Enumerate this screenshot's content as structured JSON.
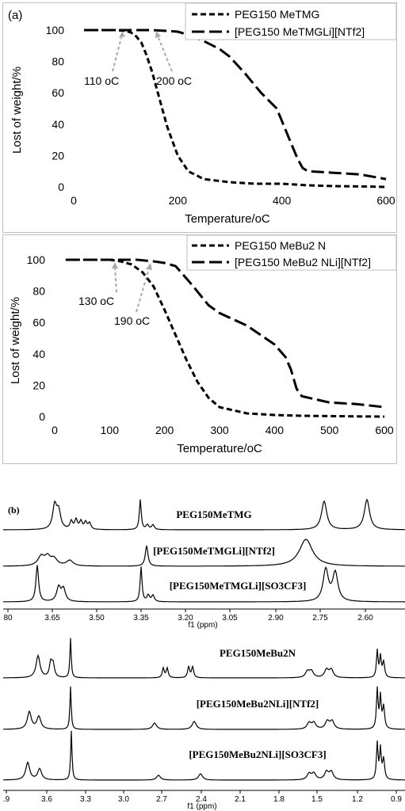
{
  "figure_a": {
    "panel_label": "(a)",
    "charts": [
      {
        "legend": [
          "PEG150 MeTMG",
          "[PEG150 MeTMGLi][NTf2]"
        ],
        "annotations": [
          "110 oC",
          "200 oC"
        ],
        "xlabel": "Temperature/oC",
        "ylabel": "Lost of weight/%"
      },
      {
        "legend": [
          "PEG150 MeBu2 N",
          "[PEG150 MeBu2 NLi][NTf2]"
        ],
        "annotations": [
          "130 oC",
          "190 oC"
        ],
        "xlabel": "Temperature/oC",
        "ylabel": "Lost of weight/%"
      }
    ]
  },
  "figure_b": {
    "panel_label": "(b)",
    "top": {
      "traces": [
        "PEG150MeTMG",
        "[PEG150MeTMGLi][NTf2]",
        "[PEG150MeTMGLi][SO3CF3]"
      ],
      "ticks": [
        "80",
        "3.65",
        "3.50",
        "3.35",
        "3.20",
        "3.05",
        "2.90",
        "2.75",
        "2.60"
      ],
      "xlabel": "f1 (ppm)"
    },
    "bottom": {
      "traces": [
        "PEG150MeBu2N",
        "[PEG150MeBu2NLi][NTf2]",
        "[PEG150MeBu2NLi][SO3CF3]"
      ],
      "ticks": [
        ".9",
        "3.6",
        "3.3",
        "3.0",
        "2.7",
        "2.4",
        "2.1",
        "1.8",
        "1.5",
        "1.2",
        "0.9"
      ],
      "xlabel": "f1 (ppm)"
    }
  },
  "chart_data": [
    {
      "type": "line",
      "xlabel": "Temperature/oC",
      "ylabel": "Lost of weight/%",
      "xlim": [
        0,
        600
      ],
      "ylim": [
        0,
        100
      ],
      "xticks": [
        0,
        200,
        400,
        600
      ],
      "yticks": [
        0,
        20,
        40,
        60,
        80,
        100
      ],
      "grid": false,
      "legend_position": "top-right",
      "series": [
        {
          "name": "PEG150 MeTMG",
          "style": "short-dash",
          "x": [
            20,
            80,
            100,
            110,
            120,
            130,
            140,
            150,
            160,
            170,
            180,
            200,
            220,
            250,
            300,
            350,
            400,
            450,
            500,
            550,
            600
          ],
          "y": [
            100,
            100,
            99.5,
            98.5,
            96,
            92,
            84,
            74,
            62,
            50,
            38,
            20,
            10,
            5,
            3,
            2,
            2,
            1,
            0.5,
            0.3,
            0
          ]
        },
        {
          "name": "[PEG150 MeTMGLi][NTf2]",
          "style": "long-dash",
          "x": [
            20,
            150,
            180,
            200,
            220,
            250,
            280,
            300,
            330,
            360,
            390,
            400,
            410,
            420,
            430,
            440,
            450,
            500,
            550,
            600
          ],
          "y": [
            100,
            100,
            99.5,
            99,
            97,
            93,
            88,
            83,
            72,
            60,
            50,
            42,
            34,
            26,
            18,
            12,
            10,
            9,
            8,
            5
          ]
        }
      ]
    },
    {
      "type": "line",
      "xlabel": "Temperature/oC",
      "ylabel": "Lost of weight/%",
      "xlim": [
        0,
        600
      ],
      "ylim": [
        0,
        100
      ],
      "xticks": [
        0,
        100,
        200,
        300,
        400,
        500,
        600
      ],
      "yticks": [
        0,
        20,
        40,
        60,
        80,
        100
      ],
      "grid": false,
      "legend_position": "top-right",
      "series": [
        {
          "name": "PEG150 MeBu2 N",
          "style": "short-dash",
          "x": [
            20,
            100,
            120,
            140,
            160,
            180,
            200,
            220,
            240,
            260,
            280,
            300,
            350,
            400,
            450,
            500,
            550,
            600
          ],
          "y": [
            100,
            100,
            99,
            97,
            92,
            83,
            68,
            52,
            36,
            22,
            12,
            6,
            2,
            1,
            0.5,
            0.3,
            0.1,
            0
          ]
        },
        {
          "name": "[PEG150 MeBu2 NLi][NTf2]",
          "style": "long-dash",
          "x": [
            20,
            150,
            180,
            200,
            220,
            250,
            280,
            300,
            350,
            400,
            420,
            430,
            440,
            445,
            450,
            500,
            550,
            600
          ],
          "y": [
            100,
            100,
            99,
            98,
            96,
            84,
            71,
            66,
            58,
            46,
            38,
            30,
            18,
            15,
            13,
            9,
            8,
            6
          ]
        }
      ]
    }
  ]
}
